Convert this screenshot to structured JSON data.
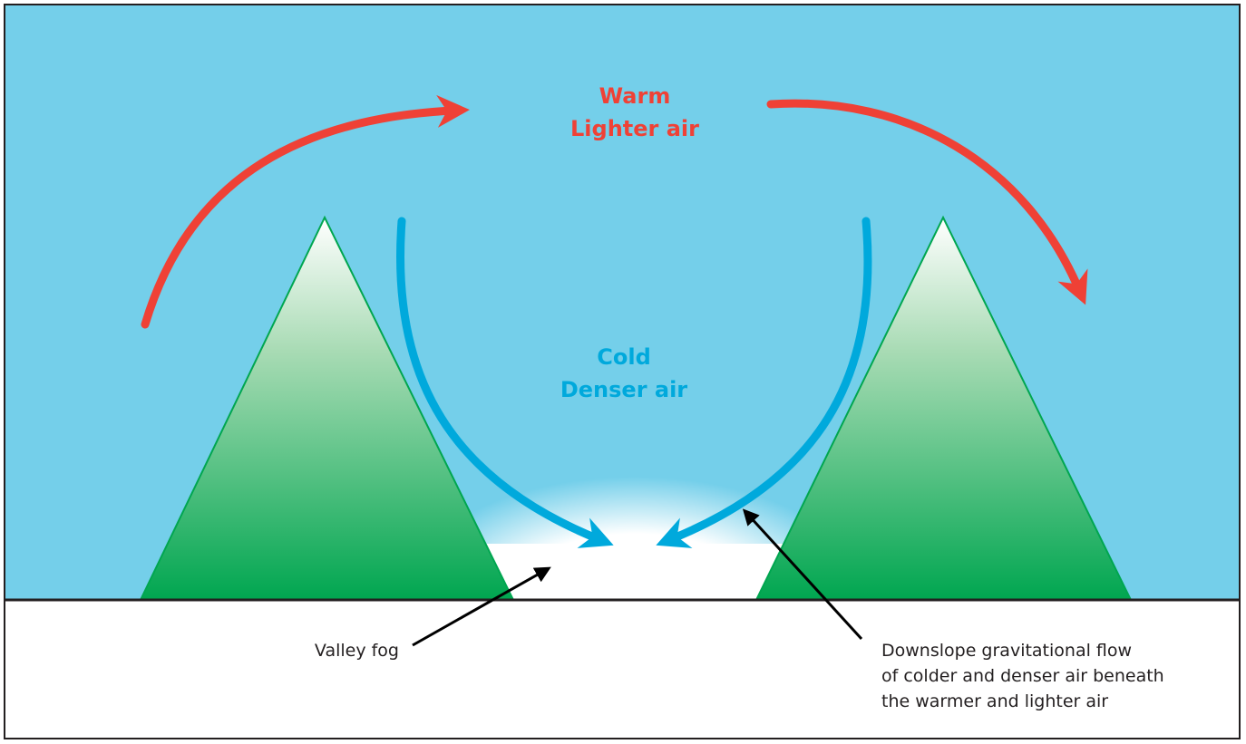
{
  "labels": {
    "warm": [
      "Warm",
      "Lighter air"
    ],
    "cold": [
      "Cold",
      "Denser air"
    ],
    "fog": "Valley fog",
    "flow": [
      "Downslope gravitational flow",
      "of colder and denser air beneath",
      "the warmer and lighter air"
    ]
  }
}
